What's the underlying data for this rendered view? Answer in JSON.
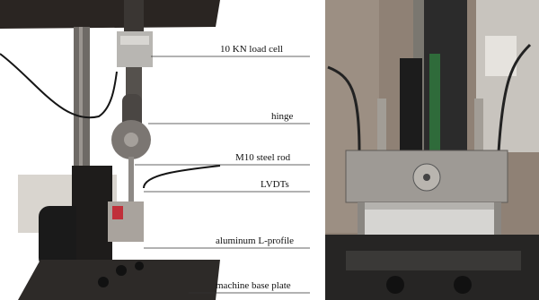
{
  "annotations": [
    "10 KN load cell",
    "hinge",
    "M10 steel rod",
    "LVDTs",
    "aluminum L-profile",
    "machine base plate"
  ]
}
